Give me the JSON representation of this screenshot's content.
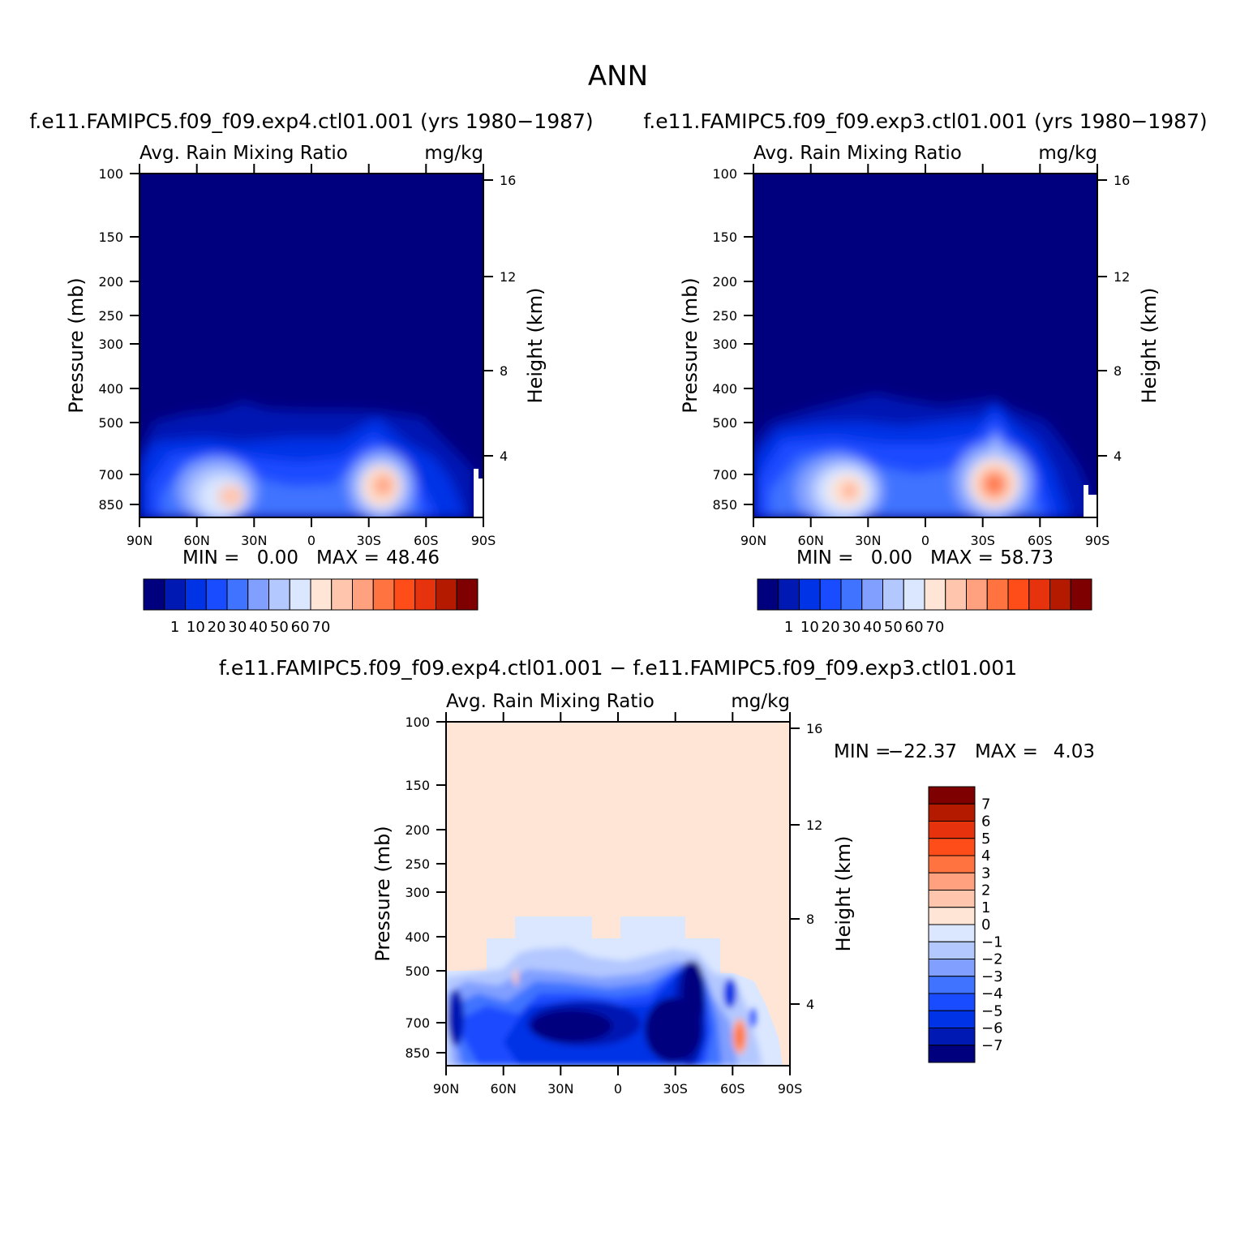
{
  "main_title": "ANN",
  "colors": {
    "seq": [
      "#00007f",
      "#0019b3",
      "#0033e6",
      "#1a4cff",
      "#4073ff",
      "#809fff",
      "#b3c8ff",
      "#dbe7ff",
      "#ffe5d6",
      "#ffc6ad",
      "#ffa07f",
      "#ff7340",
      "#ff4d1a",
      "#e6330d",
      "#b31a00",
      "#7f0000"
    ],
    "diff": [
      "#00007f",
      "#0019b3",
      "#0033e6",
      "#1a4cff",
      "#4073ff",
      "#809fff",
      "#b3c8ff",
      "#dbe7ff",
      "#ffe5d6",
      "#ffc6ad",
      "#ffa07f",
      "#ff7340",
      "#ff4d1a",
      "#e6330d",
      "#b31a00",
      "#7f0000"
    ]
  },
  "chart_data": [
    {
      "type": "heatmap",
      "id": "panel1",
      "case_title": "f.e11.FAMIPC5.f09_f09.exp4.ctl01.001 (yrs 1980-1987)",
      "variable": "Avg. Rain Mixing Ratio",
      "units": "mg/kg",
      "xlabel": "",
      "ylabel": "Pressure (mb)",
      "ylabel_right": "Height (km)",
      "x_ticks": [
        "90N",
        "60N",
        "30N",
        "0",
        "30S",
        "60S",
        "90S"
      ],
      "y_ticks": [
        "100",
        "150",
        "200",
        "250",
        "300",
        "400",
        "500",
        "700",
        "850"
      ],
      "y_ticks_right": [
        "16",
        "12",
        "8",
        "4"
      ],
      "stats": {
        "min_label": "MIN =",
        "min": "0.00",
        "max_label": "MAX =",
        "max": "48.46"
      },
      "colorbar_labels": [
        "1",
        "10",
        "20",
        "30",
        "40",
        "50",
        "60",
        "70"
      ],
      "features": [
        {
          "lat": -40,
          "p": 760,
          "value": 46
        },
        {
          "lat": 45,
          "p": 800,
          "value": 38
        }
      ]
    },
    {
      "type": "heatmap",
      "id": "panel2",
      "case_title": "f.e11.FAMIPC5.f09_f09.exp3.ctl01.001 (yrs 1980-1987)",
      "variable": "Avg. Rain Mixing Ratio",
      "units": "mg/kg",
      "xlabel": "",
      "ylabel": "Pressure (mb)",
      "ylabel_right": "Height (km)",
      "x_ticks": [
        "90N",
        "60N",
        "30N",
        "0",
        "30S",
        "60S",
        "90S"
      ],
      "y_ticks": [
        "100",
        "150",
        "200",
        "250",
        "300",
        "400",
        "500",
        "700",
        "850"
      ],
      "y_ticks_right": [
        "16",
        "12",
        "8",
        "4"
      ],
      "stats": {
        "min_label": "MIN =",
        "min": "0.00",
        "max_label": "MAX =",
        "max": "58.73"
      },
      "colorbar_labels": [
        "1",
        "10",
        "20",
        "30",
        "40",
        "50",
        "60",
        "70"
      ],
      "features": [
        {
          "lat": -38,
          "p": 760,
          "value": 58
        },
        {
          "lat": 40,
          "p": 800,
          "value": 47
        }
      ]
    },
    {
      "type": "heatmap",
      "id": "panel3",
      "case_title": "f.e11.FAMIPC5.f09_f09.exp4.ctl01.001 - f.e11.FAMIPC5.f09_f09.exp3.ctl01.001",
      "variable": "Avg. Rain Mixing Ratio",
      "units": "mg/kg",
      "xlabel": "",
      "ylabel": "Pressure (mb)",
      "ylabel_right": "Height (km)",
      "x_ticks": [
        "90N",
        "60N",
        "30N",
        "0",
        "30S",
        "60S",
        "90S"
      ],
      "y_ticks": [
        "100",
        "150",
        "200",
        "250",
        "300",
        "400",
        "500",
        "700",
        "850"
      ],
      "y_ticks_right": [
        "16",
        "12",
        "8",
        "4"
      ],
      "stats": {
        "min_label": "MIN =",
        "min": "-22.37",
        "max_label": "MAX =",
        "max": "4.03"
      },
      "colorbar_labels": [
        "7",
        "6",
        "5",
        "4",
        "3",
        "2",
        "1",
        "0",
        "-1",
        "-2",
        "-3",
        "-4",
        "-5",
        "-6",
        "-7"
      ],
      "features": [
        {
          "lat": -35,
          "p": 700,
          "value": -22
        },
        {
          "lat": 12,
          "p": 720,
          "value": -15
        },
        {
          "lat": -64,
          "p": 800,
          "value": 4
        }
      ]
    }
  ]
}
